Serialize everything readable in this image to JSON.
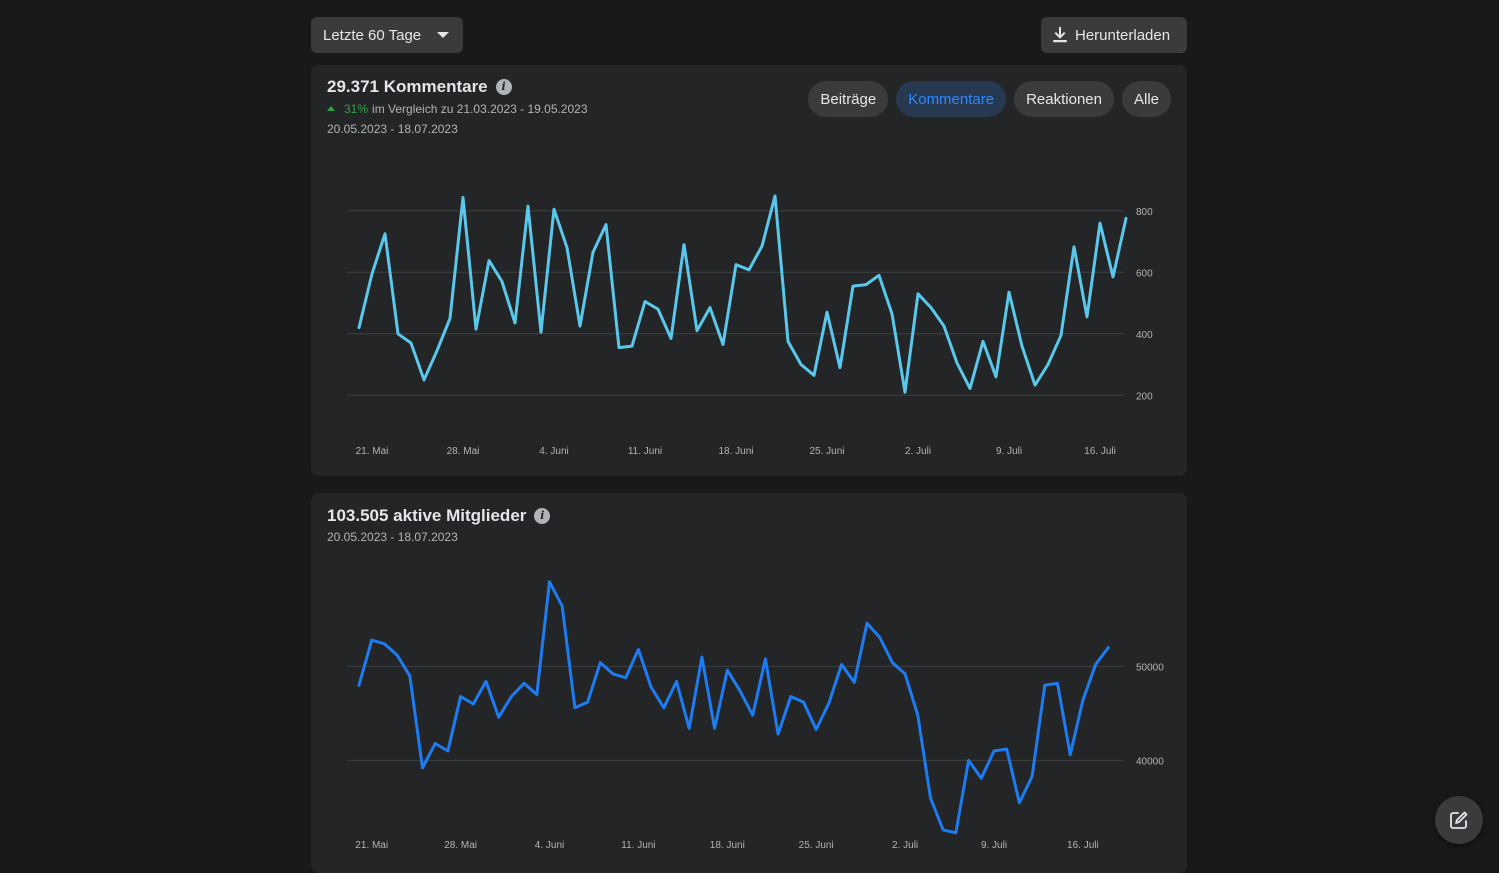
{
  "toolbar": {
    "range_label": "Letzte 60 Tage",
    "download_label": "Herunterladen"
  },
  "comments_card": {
    "title": "29.371 Kommentare",
    "change_pct": "31%",
    "change_text": "im Vergleich zu 21.03.2023 - 19.05.2023",
    "date_range": "20.05.2023 - 18.07.2023",
    "tabs": [
      {
        "label": "Beiträge",
        "active": false
      },
      {
        "label": "Kommentare",
        "active": true
      },
      {
        "label": "Reaktionen",
        "active": false
      },
      {
        "label": "Alle",
        "active": false
      }
    ]
  },
  "members_card": {
    "title": "103.505 aktive Mitglieder",
    "date_range": "20.05.2023 - 18.07.2023"
  },
  "colors": {
    "comments_line": "#5ac8ec",
    "members_line": "#1d7cf2",
    "active_tab_text": "#2d88ff",
    "positive": "#31a24c"
  },
  "icons": {
    "download": "download-icon",
    "info": "info-icon",
    "caret": "caret-down-icon",
    "compose": "compose-icon"
  },
  "chart_data": [
    {
      "type": "line",
      "x": [
        "20.05",
        "21.05",
        "22.05",
        "23.05",
        "24.05",
        "25.05",
        "26.05",
        "27.05",
        "28.05",
        "29.05",
        "30.05",
        "31.05",
        "01.06",
        "02.06",
        "03.06",
        "04.06",
        "05.06",
        "06.06",
        "07.06",
        "08.06",
        "09.06",
        "10.06",
        "11.06",
        "12.06",
        "13.06",
        "14.06",
        "15.06",
        "16.06",
        "17.06",
        "18.06",
        "19.06",
        "20.06",
        "21.06",
        "22.06",
        "23.06",
        "24.06",
        "25.06",
        "26.06",
        "27.06",
        "28.06",
        "29.06",
        "30.06",
        "01.07",
        "02.07",
        "03.07",
        "04.07",
        "05.07",
        "06.07",
        "07.07",
        "08.07",
        "09.07",
        "10.07",
        "11.07",
        "12.07",
        "13.07",
        "14.07",
        "15.07",
        "16.07",
        "17.07",
        "18.07"
      ],
      "x_ticks": [
        "21. Mai",
        "28. Mai",
        "4. Juni",
        "11. Juni",
        "18. Juni",
        "25. Juni",
        "2. Juli",
        "9. Juli",
        "16. Juli"
      ],
      "values": [
        420,
        595,
        725,
        400,
        370,
        250,
        345,
        450,
        843,
        415,
        638,
        570,
        435,
        815,
        405,
        805,
        680,
        425,
        665,
        755,
        355,
        360,
        505,
        480,
        385,
        690,
        410,
        485,
        365,
        625,
        608,
        685,
        848,
        375,
        300,
        265,
        470,
        290,
        555,
        560,
        590,
        465,
        210,
        530,
        485,
        425,
        305,
        222,
        375,
        260,
        535,
        360,
        233,
        300,
        395,
        683,
        455,
        760,
        585,
        775
      ],
      "yticks": [
        200,
        400,
        600,
        800
      ],
      "ylim": [
        100,
        900
      ],
      "grid": true
    },
    {
      "type": "line",
      "x": [
        "20.05",
        "21.05",
        "22.05",
        "23.05",
        "24.05",
        "25.05",
        "26.05",
        "27.05",
        "28.05",
        "29.05",
        "30.05",
        "31.05",
        "01.06",
        "02.06",
        "03.06",
        "04.06",
        "05.06",
        "06.06",
        "07.06",
        "08.06",
        "09.06",
        "10.06",
        "11.06",
        "12.06",
        "13.06",
        "14.06",
        "15.06",
        "16.06",
        "17.06",
        "18.06",
        "19.06",
        "20.06",
        "21.06",
        "22.06",
        "23.06",
        "24.06",
        "25.06",
        "26.06",
        "27.06",
        "28.06",
        "29.06",
        "30.06",
        "01.07",
        "02.07",
        "03.07",
        "04.07",
        "05.07",
        "06.07",
        "07.07",
        "08.07",
        "09.07",
        "10.07",
        "11.07",
        "12.07",
        "13.07",
        "14.07",
        "15.07",
        "16.07",
        "17.07",
        "18.07"
      ],
      "x_ticks": [
        "21. Mai",
        "28. Mai",
        "4. Juni",
        "11. Juni",
        "18. Juni",
        "25. Juni",
        "2. Juli",
        "9. Juli",
        "16. Juli"
      ],
      "values": [
        48000,
        52800,
        52400,
        51200,
        49000,
        39200,
        41800,
        41000,
        46800,
        46000,
        48400,
        44600,
        46800,
        48200,
        47000,
        59000,
        56400,
        45600,
        46200,
        50400,
        49200,
        48800,
        51800,
        47800,
        45600,
        48400,
        43400,
        51000,
        43400,
        49600,
        47400,
        44800,
        50800,
        42800,
        46800,
        46200,
        43300,
        46100,
        50200,
        48300,
        54600,
        53100,
        50400,
        49200,
        44800,
        36000,
        32600,
        32300,
        40000,
        38100,
        41000,
        41200,
        35500,
        38300,
        48000,
        48200,
        40600,
        46400,
        50200,
        52000
      ],
      "yticks": [
        40000,
        50000
      ],
      "ylim": [
        31000,
        61000
      ],
      "grid": true
    }
  ]
}
